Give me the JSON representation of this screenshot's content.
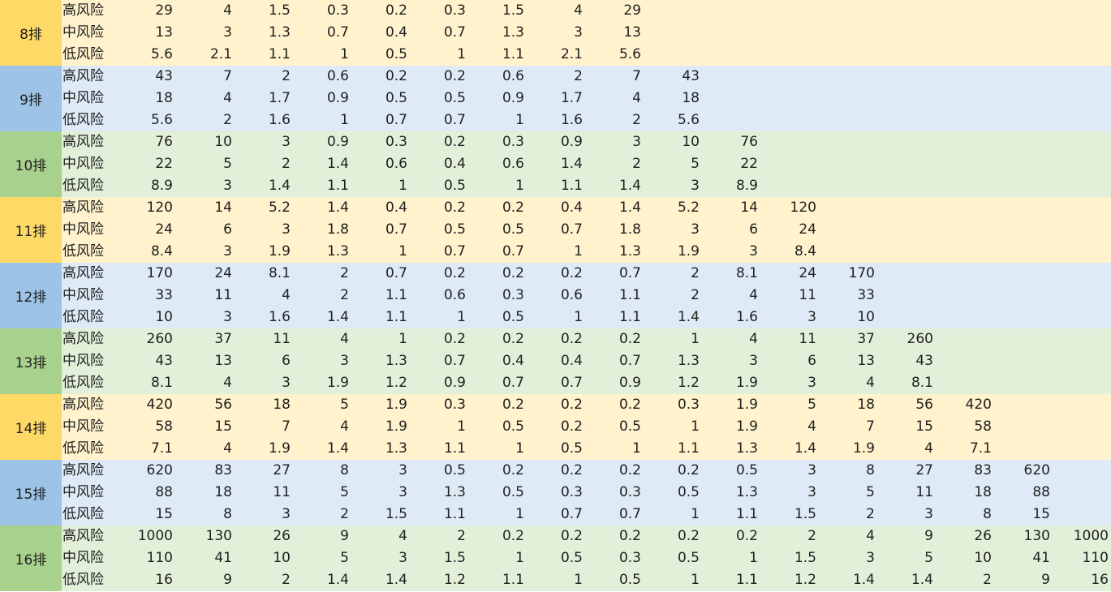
{
  "groups": [
    {
      "label": "8排",
      "theme": "yellow",
      "rows": [
        {
          "cat": "高风险",
          "values": [
            "29",
            "4",
            "1.5",
            "0.3",
            "0.2",
            "0.3",
            "1.5",
            "4",
            "29"
          ]
        },
        {
          "cat": "中风险",
          "values": [
            "13",
            "3",
            "1.3",
            "0.7",
            "0.4",
            "0.7",
            "1.3",
            "3",
            "13"
          ]
        },
        {
          "cat": "低风险",
          "values": [
            "5.6",
            "2.1",
            "1.1",
            "1",
            "0.5",
            "1",
            "1.1",
            "2.1",
            "5.6"
          ]
        }
      ]
    },
    {
      "label": "9排",
      "theme": "blue",
      "rows": [
        {
          "cat": "高风险",
          "values": [
            "43",
            "7",
            "2",
            "0.6",
            "0.2",
            "0.2",
            "0.6",
            "2",
            "7",
            "43"
          ]
        },
        {
          "cat": "中风险",
          "values": [
            "18",
            "4",
            "1.7",
            "0.9",
            "0.5",
            "0.5",
            "0.9",
            "1.7",
            "4",
            "18"
          ]
        },
        {
          "cat": "低风险",
          "values": [
            "5.6",
            "2",
            "1.6",
            "1",
            "0.7",
            "0.7",
            "1",
            "1.6",
            "2",
            "5.6"
          ]
        }
      ]
    },
    {
      "label": "10排",
      "theme": "green",
      "rows": [
        {
          "cat": "高风险",
          "values": [
            "76",
            "10",
            "3",
            "0.9",
            "0.3",
            "0.2",
            "0.3",
            "0.9",
            "3",
            "10",
            "76"
          ]
        },
        {
          "cat": "中风险",
          "values": [
            "22",
            "5",
            "2",
            "1.4",
            "0.6",
            "0.4",
            "0.6",
            "1.4",
            "2",
            "5",
            "22"
          ]
        },
        {
          "cat": "低风险",
          "values": [
            "8.9",
            "3",
            "1.4",
            "1.1",
            "1",
            "0.5",
            "1",
            "1.1",
            "1.4",
            "3",
            "8.9"
          ]
        }
      ]
    },
    {
      "label": "11排",
      "theme": "yellow",
      "rows": [
        {
          "cat": "高风险",
          "values": [
            "120",
            "14",
            "5.2",
            "1.4",
            "0.4",
            "0.2",
            "0.2",
            "0.4",
            "1.4",
            "5.2",
            "14",
            "120"
          ]
        },
        {
          "cat": "中风险",
          "values": [
            "24",
            "6",
            "3",
            "1.8",
            "0.7",
            "0.5",
            "0.5",
            "0.7",
            "1.8",
            "3",
            "6",
            "24"
          ]
        },
        {
          "cat": "低风险",
          "values": [
            "8.4",
            "3",
            "1.9",
            "1.3",
            "1",
            "0.7",
            "0.7",
            "1",
            "1.3",
            "1.9",
            "3",
            "8.4"
          ]
        }
      ]
    },
    {
      "label": "12排",
      "theme": "blue",
      "rows": [
        {
          "cat": "高风险",
          "values": [
            "170",
            "24",
            "8.1",
            "2",
            "0.7",
            "0.2",
            "0.2",
            "0.2",
            "0.7",
            "2",
            "8.1",
            "24",
            "170"
          ]
        },
        {
          "cat": "中风险",
          "values": [
            "33",
            "11",
            "4",
            "2",
            "1.1",
            "0.6",
            "0.3",
            "0.6",
            "1.1",
            "2",
            "4",
            "11",
            "33"
          ]
        },
        {
          "cat": "低风险",
          "values": [
            "10",
            "3",
            "1.6",
            "1.4",
            "1.1",
            "1",
            "0.5",
            "1",
            "1.1",
            "1.4",
            "1.6",
            "3",
            "10"
          ]
        }
      ]
    },
    {
      "label": "13排",
      "theme": "green",
      "rows": [
        {
          "cat": "高风险",
          "values": [
            "260",
            "37",
            "11",
            "4",
            "1",
            "0.2",
            "0.2",
            "0.2",
            "0.2",
            "1",
            "4",
            "11",
            "37",
            "260"
          ]
        },
        {
          "cat": "中风险",
          "values": [
            "43",
            "13",
            "6",
            "3",
            "1.3",
            "0.7",
            "0.4",
            "0.4",
            "0.7",
            "1.3",
            "3",
            "6",
            "13",
            "43"
          ]
        },
        {
          "cat": "低风险",
          "values": [
            "8.1",
            "4",
            "3",
            "1.9",
            "1.2",
            "0.9",
            "0.7",
            "0.7",
            "0.9",
            "1.2",
            "1.9",
            "3",
            "4",
            "8.1"
          ]
        }
      ]
    },
    {
      "label": "14排",
      "theme": "yellow",
      "rows": [
        {
          "cat": "高风险",
          "values": [
            "420",
            "56",
            "18",
            "5",
            "1.9",
            "0.3",
            "0.2",
            "0.2",
            "0.2",
            "0.3",
            "1.9",
            "5",
            "18",
            "56",
            "420"
          ]
        },
        {
          "cat": "中风险",
          "values": [
            "58",
            "15",
            "7",
            "4",
            "1.9",
            "1",
            "0.5",
            "0.2",
            "0.5",
            "1",
            "1.9",
            "4",
            "7",
            "15",
            "58"
          ]
        },
        {
          "cat": "低风险",
          "values": [
            "7.1",
            "4",
            "1.9",
            "1.4",
            "1.3",
            "1.1",
            "1",
            "0.5",
            "1",
            "1.1",
            "1.3",
            "1.4",
            "1.9",
            "4",
            "7.1"
          ]
        }
      ]
    },
    {
      "label": "15排",
      "theme": "blue",
      "rows": [
        {
          "cat": "高风险",
          "values": [
            "620",
            "83",
            "27",
            "8",
            "3",
            "0.5",
            "0.2",
            "0.2",
            "0.2",
            "0.2",
            "0.5",
            "3",
            "8",
            "27",
            "83",
            "620"
          ]
        },
        {
          "cat": "中风险",
          "values": [
            "88",
            "18",
            "11",
            "5",
            "3",
            "1.3",
            "0.5",
            "0.3",
            "0.3",
            "0.5",
            "1.3",
            "3",
            "5",
            "11",
            "18",
            "88"
          ]
        },
        {
          "cat": "低风险",
          "values": [
            "15",
            "8",
            "3",
            "2",
            "1.5",
            "1.1",
            "1",
            "0.7",
            "0.7",
            "1",
            "1.1",
            "1.5",
            "2",
            "3",
            "8",
            "15"
          ]
        }
      ]
    },
    {
      "label": "16排",
      "theme": "green",
      "rows": [
        {
          "cat": "高风险",
          "values": [
            "1000",
            "130",
            "26",
            "9",
            "4",
            "2",
            "0.2",
            "0.2",
            "0.2",
            "0.2",
            "0.2",
            "2",
            "4",
            "9",
            "26",
            "130",
            "1000"
          ]
        },
        {
          "cat": "中风险",
          "values": [
            "110",
            "41",
            "10",
            "5",
            "3",
            "1.5",
            "1",
            "0.5",
            "0.3",
            "0.5",
            "1",
            "1.5",
            "3",
            "5",
            "10",
            "41",
            "110"
          ]
        },
        {
          "cat": "低风险",
          "values": [
            "16",
            "9",
            "2",
            "1.4",
            "1.4",
            "1.2",
            "1.1",
            "1",
            "0.5",
            "1",
            "1.1",
            "1.2",
            "1.4",
            "1.4",
            "2",
            "9",
            "16"
          ]
        }
      ]
    }
  ]
}
